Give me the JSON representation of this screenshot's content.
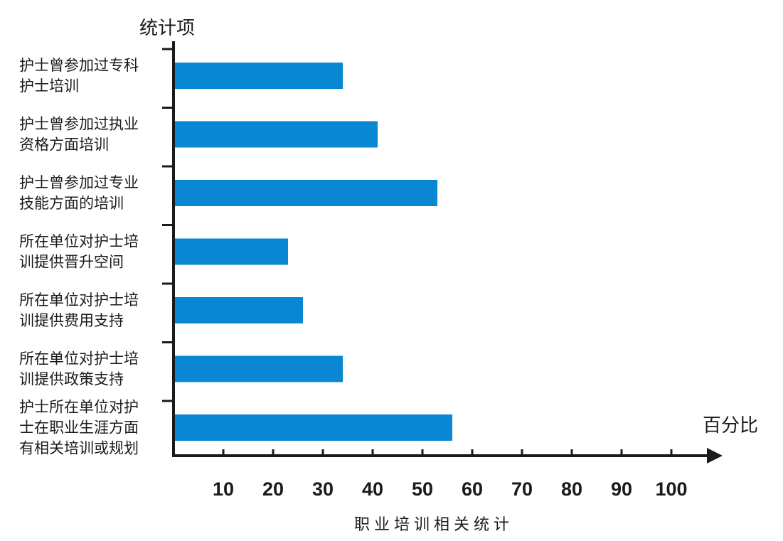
{
  "chart_data": {
    "type": "bar",
    "orientation": "horizontal",
    "title": "职业培训相关统计",
    "ylabel": "统计项",
    "xlabel": "百分比",
    "xlim": [
      0,
      100
    ],
    "xticks": [
      "10",
      "20",
      "30",
      "40",
      "50",
      "60",
      "70",
      "80",
      "90",
      "100"
    ],
    "categories": [
      [
        "护士曾参加过专科",
        "护士培训"
      ],
      [
        "护士曾参加过执业",
        "资格方面培训"
      ],
      [
        "护士曾参加过专业",
        "技能方面的培训"
      ],
      [
        "所在单位对护士培",
        "训提供晋升空间"
      ],
      [
        "所在单位对护士培",
        "训提供费用支持"
      ],
      [
        "所在单位对护士培",
        "训提供政策支持"
      ],
      [
        "护士所在单位对护",
        "士在职业生涯方面",
        "有相关培训或规划"
      ]
    ],
    "values": [
      34,
      41,
      53,
      23,
      26,
      34,
      56
    ],
    "bar_color": "#0a87d3",
    "grid": false
  }
}
